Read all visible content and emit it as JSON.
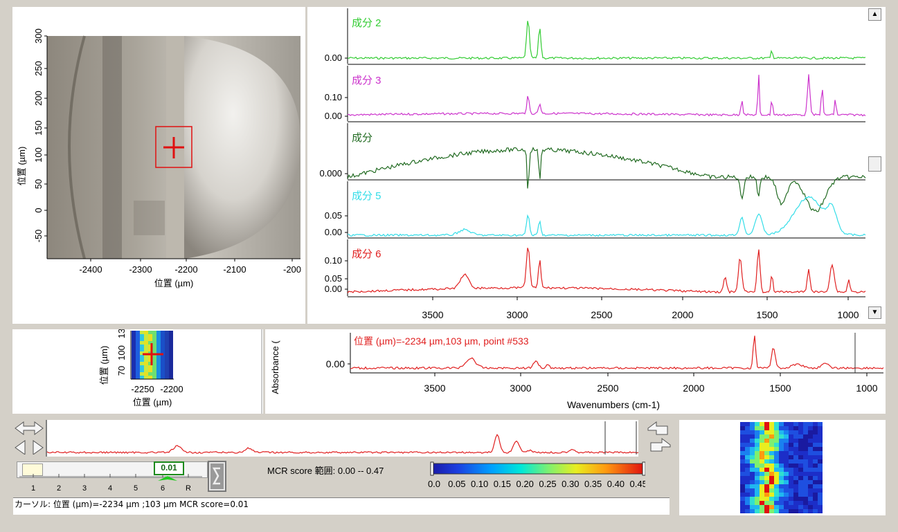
{
  "image_panel": {
    "xlabel": "位置 (µm)",
    "ylabel": "位置 (µm)",
    "x_ticks": [
      "-2400",
      "-2300",
      "-2200",
      "-2100",
      "-200"
    ],
    "y_ticks": [
      "300",
      "250",
      "200",
      "150",
      "100",
      "50",
      "0",
      "-50"
    ]
  },
  "components": [
    {
      "name": "成分 2",
      "color": "#33cc33",
      "yticks": [
        "0.00"
      ]
    },
    {
      "name": "成分 3",
      "color": "#cc33cc",
      "yticks": [
        "0.10",
        "0.00"
      ]
    },
    {
      "name": "成分",
      "color": "#226b22",
      "yticks": [
        "0.000"
      ]
    },
    {
      "name": "成分 5",
      "color": "#33dde8",
      "yticks": [
        "0.05",
        "0.00"
      ]
    },
    {
      "name": "成分 6",
      "color": "#e02020",
      "yticks": [
        "0.10",
        "0.05",
        "0.00"
      ]
    }
  ],
  "component_x_ticks": [
    "3500",
    "3000",
    "2500",
    "2000",
    "1500",
    "1000"
  ],
  "mini_map": {
    "ylabel": "位置 (µm)",
    "xlabel": "位置 (µm)",
    "y_ticks": [
      "70",
      "100",
      "13"
    ],
    "x_ticks": [
      "-2250",
      "-2200"
    ]
  },
  "spectrum": {
    "ylabel": "Absorbance (",
    "title": "位置 (µm)=-2234 µm,103 µm, point #533",
    "ytick": "0.00",
    "x_ticks": [
      "3500",
      "3000",
      "2500",
      "2000",
      "1500",
      "1000"
    ],
    "xlabel": "Wavenumbers (cm-1)",
    "color": "#e02020"
  },
  "slider": {
    "value": "0.01",
    "ticks": [
      "1",
      "2",
      "3",
      "4",
      "5",
      "6",
      "R"
    ]
  },
  "mcr": {
    "label": "MCR score 範囲: 0.00 -- 0.47",
    "scale": [
      "0.0",
      "0.05",
      "0.10",
      "0.15",
      "0.20",
      "0.25",
      "0.30",
      "0.35",
      "0.40",
      "0.45"
    ]
  },
  "status": {
    "text": "カーソル:  位置 (µm)=-2234 µm ;103 µm  MCR score=0.01"
  }
}
